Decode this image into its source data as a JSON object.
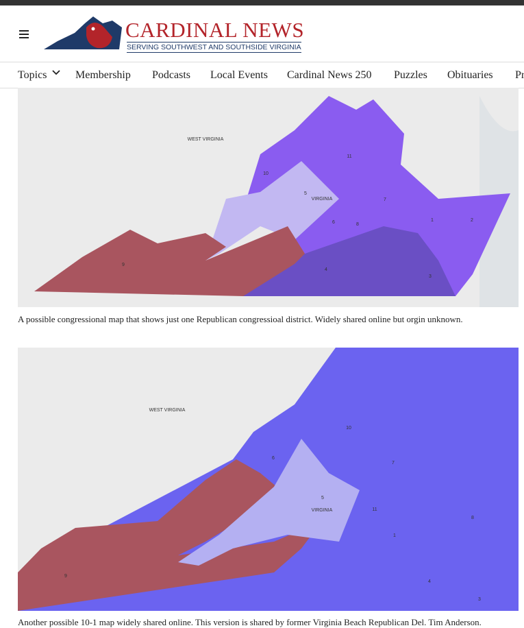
{
  "header": {
    "logo_title": "CARDINAL NEWS",
    "tagline": "SERVING SOUTHWEST AND SOUTHSIDE VIRGINIA"
  },
  "nav": [
    "Topics",
    "Membership",
    "Podcasts",
    "Local Events",
    "Cardinal News 250",
    "Puzzles",
    "Obituaries",
    "Pr"
  ],
  "figures": [
    {
      "caption": "A possible congressional map that shows just one Republican congressioal district. Widely shared online but orgin unknown.",
      "labels": [
        "WEST VIRGINIA",
        "VIRGINIA",
        "10",
        "11",
        "5",
        "7",
        "6",
        "8",
        "1",
        "2",
        "9",
        "4",
        "3"
      ]
    },
    {
      "caption": "Another possible 10-1 map widely shared online. This version is shared by former Virginia Beach Republican Del. Tim Anderson.",
      "labels": [
        "WEST VIRGINIA",
        "VIRGINIA",
        "10",
        "7",
        "6",
        "5",
        "11",
        "8",
        "1",
        "9",
        "4",
        "3"
      ]
    }
  ]
}
